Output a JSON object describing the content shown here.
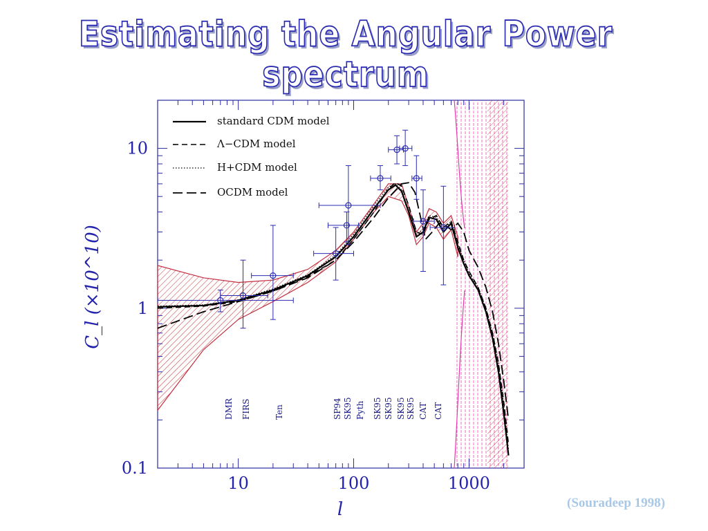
{
  "slide": {
    "title": "Estimating the Angular Power spectrum",
    "citation": "(Souradeep 1998)"
  },
  "chart_data": {
    "type": "line",
    "title": "",
    "xlabel": "l",
    "ylabel": "C_l (×10^10)",
    "xscale": "log",
    "yscale": "log",
    "xlim": [
      2,
      3000
    ],
    "ylim": [
      0.1,
      20
    ],
    "xticks": [
      {
        "value": 10,
        "label": "10"
      },
      {
        "value": 100,
        "label": "100"
      },
      {
        "value": 1000,
        "label": "1000"
      }
    ],
    "yticks": [
      {
        "value": 0.1,
        "label": "0.1"
      },
      {
        "value": 1,
        "label": "1"
      },
      {
        "value": 10,
        "label": "10"
      }
    ],
    "legend_placement": "top-left",
    "series": [
      {
        "name": "standard CDM model",
        "dash": "solid",
        "x": [
          2,
          5,
          10,
          20,
          40,
          70,
          100,
          150,
          200,
          230,
          260,
          300,
          350,
          400,
          450,
          520,
          600,
          700,
          800,
          900,
          1000,
          1200,
          1400,
          1600,
          1800,
          2000,
          2200
        ],
        "y": [
          1.02,
          1.04,
          1.12,
          1.3,
          1.6,
          2.1,
          2.8,
          4.2,
          5.5,
          5.9,
          5.4,
          4.0,
          2.8,
          3.0,
          3.7,
          3.6,
          3.0,
          3.4,
          2.4,
          1.9,
          1.6,
          1.3,
          0.95,
          0.65,
          0.4,
          0.22,
          0.12
        ]
      },
      {
        "name": "Λ−CDM model",
        "dash": "dashed",
        "x": [
          2,
          5,
          10,
          20,
          40,
          70,
          100,
          150,
          200,
          230,
          260,
          300,
          350,
          400,
          450,
          520,
          600,
          700,
          800,
          900,
          1000,
          1200,
          1400,
          1600,
          1800,
          2000,
          2200
        ],
        "y": [
          1.0,
          1.03,
          1.1,
          1.28,
          1.58,
          2.0,
          2.7,
          4.0,
          5.6,
          6.1,
          5.8,
          4.4,
          3.0,
          2.9,
          3.6,
          3.8,
          3.2,
          3.5,
          2.6,
          2.0,
          1.7,
          1.35,
          1.0,
          0.7,
          0.45,
          0.26,
          0.14
        ]
      },
      {
        "name": "H+CDM model",
        "dash": "dotted",
        "x": [
          2,
          5,
          10,
          20,
          40,
          70,
          100,
          150,
          200,
          230,
          260,
          300,
          350,
          400,
          450,
          520,
          600,
          700,
          800,
          900,
          1000,
          1200,
          1400,
          1600,
          1800,
          2000,
          2200
        ],
        "y": [
          1.03,
          1.05,
          1.13,
          1.32,
          1.62,
          2.15,
          2.9,
          4.4,
          5.7,
          6.0,
          5.5,
          4.1,
          2.9,
          3.1,
          3.8,
          3.7,
          3.1,
          3.5,
          2.5,
          2.0,
          1.65,
          1.35,
          1.0,
          0.7,
          0.45,
          0.25,
          0.13
        ]
      },
      {
        "name": "OCDM model",
        "dash": "long-dashed",
        "x": [
          2,
          5,
          10,
          20,
          40,
          70,
          100,
          150,
          200,
          260,
          300,
          340,
          380,
          420,
          480,
          550,
          620,
          700,
          800,
          900,
          1000,
          1200,
          1400,
          1600,
          1800,
          2000,
          2200
        ],
        "y": [
          0.75,
          0.95,
          1.1,
          1.28,
          1.55,
          2.0,
          2.6,
          3.7,
          4.9,
          6.0,
          6.1,
          5.3,
          3.7,
          2.7,
          3.0,
          3.4,
          3.3,
          3.1,
          3.4,
          3.0,
          2.3,
          1.8,
          1.35,
          0.95,
          0.6,
          0.35,
          0.2
        ]
      }
    ],
    "measurements": [
      {
        "x": 7,
        "y": 1.12,
        "xerr": [
          2,
          30
        ],
        "yerr": [
          0.95,
          1.3
        ],
        "label": "DMR"
      },
      {
        "x": 11,
        "y": 1.2,
        "xerr": [
          7,
          18
        ],
        "yerr": [
          0.75,
          2.0
        ],
        "label": "FIRS"
      },
      {
        "x": 20,
        "y": 1.6,
        "xerr": [
          13,
          30
        ],
        "yerr": [
          0.85,
          3.3
        ],
        "label": "Ten"
      },
      {
        "x": 70,
        "y": 2.2,
        "xerr": [
          45,
          100
        ],
        "yerr": [
          1.5,
          3.2
        ],
        "label": "SP94"
      },
      {
        "x": 87,
        "y": 3.3,
        "xerr": [
          60,
          110
        ],
        "yerr": [
          2.6,
          4.0
        ],
        "label": "SK95"
      },
      {
        "x": 90,
        "y": 4.4,
        "xerr": [
          50,
          170
        ],
        "yerr": [
          2.5,
          7.8
        ],
        "label": "Pyth"
      },
      {
        "x": 170,
        "y": 6.5,
        "xerr": [
          140,
          210
        ],
        "yerr": [
          5.5,
          7.8
        ],
        "label": "SK95"
      },
      {
        "x": 237,
        "y": 9.8,
        "xerr": [
          200,
          270
        ],
        "yerr": [
          8.0,
          12.0
        ],
        "label": "SK95"
      },
      {
        "x": 280,
        "y": 10.0,
        "xerr": [
          250,
          320
        ],
        "yerr": [
          7.8,
          13.0
        ],
        "label": "SK95"
      },
      {
        "x": 350,
        "y": 6.5,
        "xerr": [
          320,
          390
        ],
        "yerr": [
          4.8,
          9.0
        ],
        "label": "SK95"
      },
      {
        "x": 400,
        "y": 3.5,
        "xerr": [
          330,
          500
        ],
        "yerr": [
          1.7,
          5.5
        ],
        "label": "CAT"
      },
      {
        "x": 600,
        "y": 3.2,
        "xerr": [
          460,
          750
        ],
        "yerr": [
          1.4,
          5.8
        ],
        "label": "CAT"
      }
    ],
    "uncertainty_band": {
      "x": [
        2,
        5,
        10,
        20,
        40,
        70,
        100,
        150,
        200,
        260,
        300,
        350,
        400,
        450,
        520,
        600,
        700,
        800
      ],
      "lower": [
        0.23,
        0.55,
        0.85,
        1.1,
        1.45,
        1.95,
        2.7,
        4.0,
        5.0,
        4.7,
        3.8,
        2.5,
        2.8,
        3.4,
        3.2,
        2.7,
        3.1,
        2.1
      ],
      "upper": [
        1.85,
        1.55,
        1.45,
        1.5,
        1.75,
        2.3,
        3.0,
        4.5,
        6.0,
        6.0,
        4.3,
        3.0,
        3.4,
        4.2,
        4.0,
        3.4,
        3.8,
        2.8
      ]
    },
    "experiment_labels": [
      "DMR",
      "FIRS",
      "Ten",
      "SP94",
      "SK95",
      "Pyth",
      "SK95",
      "SK95",
      "SK95",
      "SK95",
      "CAT",
      "CAT"
    ]
  }
}
